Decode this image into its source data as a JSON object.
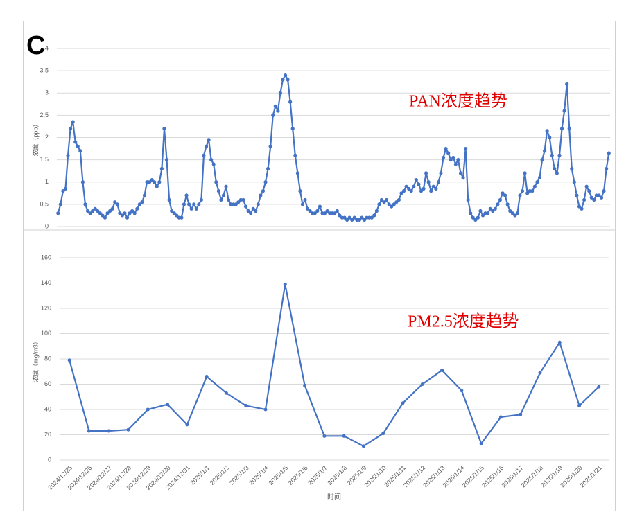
{
  "panel_label": "C",
  "chart_data": [
    {
      "type": "line",
      "annotation": "PAN浓度趋势",
      "ylabel": "浓度（ppb）",
      "color": "#4472c4",
      "ylim": [
        0,
        4
      ],
      "yticks": [
        0,
        0.5,
        1,
        1.5,
        2,
        2.5,
        3,
        3.5,
        4
      ],
      "grid": true,
      "markers": true,
      "values": [
        0.3,
        0.5,
        0.8,
        0.85,
        1.6,
        2.2,
        2.35,
        1.9,
        1.8,
        1.7,
        1.0,
        0.5,
        0.35,
        0.3,
        0.35,
        0.4,
        0.35,
        0.3,
        0.25,
        0.2,
        0.3,
        0.35,
        0.4,
        0.55,
        0.5,
        0.3,
        0.25,
        0.3,
        0.2,
        0.3,
        0.35,
        0.3,
        0.4,
        0.5,
        0.55,
        0.7,
        1.0,
        1.0,
        1.05,
        1.0,
        0.9,
        1.0,
        1.3,
        2.2,
        1.5,
        0.6,
        0.35,
        0.3,
        0.25,
        0.2,
        0.2,
        0.5,
        0.7,
        0.5,
        0.4,
        0.5,
        0.4,
        0.5,
        0.6,
        1.6,
        1.8,
        1.95,
        1.5,
        1.4,
        1.0,
        0.8,
        0.6,
        0.7,
        0.9,
        0.6,
        0.5,
        0.5,
        0.5,
        0.55,
        0.6,
        0.6,
        0.45,
        0.35,
        0.3,
        0.4,
        0.35,
        0.5,
        0.7,
        0.8,
        1.0,
        1.3,
        1.8,
        2.5,
        2.7,
        2.6,
        3.0,
        3.3,
        3.4,
        3.3,
        2.8,
        2.2,
        1.6,
        1.2,
        0.8,
        0.5,
        0.6,
        0.4,
        0.35,
        0.3,
        0.3,
        0.35,
        0.45,
        0.3,
        0.3,
        0.35,
        0.3,
        0.3,
        0.3,
        0.35,
        0.25,
        0.2,
        0.2,
        0.15,
        0.2,
        0.15,
        0.2,
        0.15,
        0.15,
        0.2,
        0.15,
        0.2,
        0.2,
        0.2,
        0.25,
        0.35,
        0.5,
        0.6,
        0.55,
        0.6,
        0.5,
        0.45,
        0.5,
        0.55,
        0.6,
        0.75,
        0.8,
        0.9,
        0.85,
        0.8,
        0.9,
        1.05,
        0.95,
        0.8,
        0.85,
        1.2,
        1.0,
        0.8,
        0.9,
        0.85,
        1.0,
        1.2,
        1.55,
        1.75,
        1.65,
        1.5,
        1.55,
        1.4,
        1.5,
        1.2,
        1.1,
        1.75,
        0.6,
        0.3,
        0.2,
        0.15,
        0.2,
        0.35,
        0.25,
        0.3,
        0.3,
        0.4,
        0.35,
        0.4,
        0.5,
        0.6,
        0.75,
        0.7,
        0.5,
        0.35,
        0.3,
        0.25,
        0.3,
        0.7,
        0.8,
        1.2,
        0.75,
        0.8,
        0.8,
        0.9,
        1.0,
        1.1,
        1.5,
        1.7,
        2.15,
        2.0,
        1.6,
        1.3,
        1.2,
        1.6,
        2.2,
        2.6,
        3.2,
        2.2,
        1.3,
        1.0,
        0.7,
        0.45,
        0.4,
        0.6,
        0.9,
        0.8,
        0.65,
        0.6,
        0.7,
        0.7,
        0.65,
        0.8,
        1.3,
        1.65
      ]
    },
    {
      "type": "line",
      "annotation": "PM2.5浓度趋势",
      "ylabel": "浓度（mg/m3）",
      "xlabel": "时间",
      "color": "#4472c4",
      "ylim": [
        0,
        160
      ],
      "yticks": [
        0,
        20,
        40,
        60,
        80,
        100,
        120,
        140,
        160
      ],
      "grid": true,
      "markers": true,
      "categories": [
        "2024/12/25",
        "2024/12/26",
        "2024/12/27",
        "2024/12/28",
        "2024/12/29",
        "2024/12/30",
        "2024/12/31",
        "2025/1/1",
        "2025/1/2",
        "2025/1/3",
        "2025/1/4",
        "2025/1/5",
        "2025/1/6",
        "2025/1/7",
        "2025/1/8",
        "2025/1/9",
        "2025/1/10",
        "2025/1/11",
        "2025/1/12",
        "2025/1/13",
        "2025/1/14",
        "2025/1/15",
        "2025/1/16",
        "2025/1/17",
        "2025/1/18",
        "2025/1/19",
        "2025/1/20",
        "2025/1/21"
      ],
      "values": [
        79,
        23,
        23,
        24,
        40,
        44,
        28,
        66,
        53,
        43,
        40,
        139,
        59,
        19,
        19,
        11,
        21,
        45,
        60,
        71,
        55,
        13,
        34,
        36,
        69,
        93,
        43,
        58
      ]
    }
  ]
}
